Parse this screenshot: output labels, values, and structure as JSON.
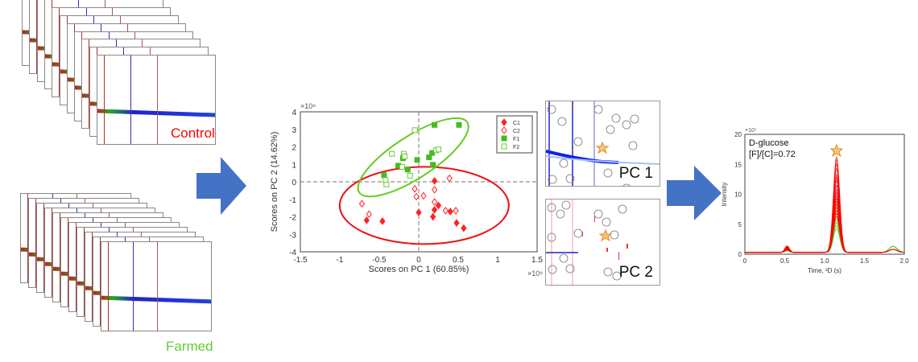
{
  "stacks": {
    "control_label": "Control",
    "farmed_label": "Farmed",
    "control_color": "#ff0000",
    "farmed_color": "#66cc33"
  },
  "arrow_color": "#4472c4",
  "loadings": {
    "pc1_label": "PC 1",
    "pc2_label": "PC 2"
  },
  "chart_data": [
    {
      "type": "scatter",
      "xlabel": "Scores on PC 1 (60.85%)",
      "ylabel": "Scores on PC 2 (14.62%)",
      "x_multiplier": "×10⁹",
      "y_multiplier": "×10⁸",
      "xlim": [
        -1.5,
        1.5
      ],
      "ylim": [
        -4,
        4
      ],
      "xticks": [
        "-1.5",
        "-1",
        "-0.5",
        "0",
        "0.5",
        "1",
        "1.5"
      ],
      "yticks": [
        "4",
        "3",
        "2",
        "1",
        "0",
        "-1",
        "-2",
        "-3",
        "-4"
      ],
      "legend_position": "top-right",
      "series": [
        {
          "name": "C1",
          "color": "#ff2222",
          "marker": "filled-diamond",
          "points": [
            [
              0.2,
              0.05
            ],
            [
              0.2,
              -1.6
            ],
            [
              0.25,
              -1.35
            ],
            [
              0,
              -1.75
            ],
            [
              0.18,
              -2.0
            ],
            [
              0.4,
              -1.7
            ],
            [
              0.48,
              -2.35
            ],
            [
              0.57,
              -2.65
            ],
            [
              -0.66,
              -2.2
            ],
            [
              -0.46,
              -2.25
            ]
          ]
        },
        {
          "name": "C2",
          "color": "#ff2222",
          "marker": "open-diamond",
          "points": [
            [
              0.39,
              0.2
            ],
            [
              -0.05,
              -0.4
            ],
            [
              0.2,
              -0.45
            ],
            [
              -0.03,
              -0.85
            ],
            [
              0.06,
              -0.8
            ],
            [
              0.2,
              -1.15
            ],
            [
              0.34,
              -1.65
            ],
            [
              0.47,
              -1.65
            ],
            [
              -0.72,
              -1.25
            ],
            [
              -0.63,
              -1.85
            ]
          ]
        },
        {
          "name": "F1",
          "color": "#44bb22",
          "marker": "filled-square",
          "points": [
            [
              0.2,
              3.25
            ],
            [
              0.51,
              3.25
            ],
            [
              0.17,
              1.65
            ],
            [
              0.13,
              1.4
            ],
            [
              -0.2,
              1.35
            ],
            [
              -0.02,
              1.25
            ],
            [
              0.18,
              0.97
            ],
            [
              -0.26,
              0.92
            ],
            [
              -0.14,
              0.7
            ],
            [
              -0.44,
              0.38
            ]
          ]
        },
        {
          "name": "F2",
          "color": "#66cc33",
          "marker": "open-square",
          "points": [
            [
              -0.05,
              2.95
            ],
            [
              -0.34,
              1.6
            ],
            [
              -0.19,
              1.6
            ],
            [
              -0.18,
              1.45
            ],
            [
              0.22,
              1.8
            ],
            [
              0.25,
              1.85
            ],
            [
              -0.21,
              0.85
            ],
            [
              -0.11,
              0.35
            ],
            [
              -0.42,
              0.1
            ],
            [
              -0.41,
              -0.15
            ]
          ]
        }
      ]
    },
    {
      "type": "line",
      "annotation_1": "D-glucose",
      "annotation_2": "[F]/[C]=0.72",
      "xlabel": "Time, ²D (s)",
      "ylabel": "Intensity",
      "y_multiplier": "×10⁵",
      "xlim": [
        0,
        2
      ],
      "ylim": [
        0,
        20
      ],
      "xticks": [
        "0",
        "0.5",
        "1.0",
        "1.5",
        "2.0"
      ],
      "yticks": [
        "20",
        "15",
        "10",
        "5",
        "0"
      ],
      "peak_time": 1.15,
      "series": [
        {
          "group": "C",
          "color": "#ff0000",
          "peak_heights": [
            16,
            15.5,
            14.8,
            14,
            13,
            12.5,
            12,
            11.2,
            10.5,
            10,
            9.5,
            9,
            8.5,
            8,
            7.5,
            7,
            6.5,
            6
          ]
        },
        {
          "group": "F",
          "color": "#44cc22",
          "peak_heights": [
            9,
            8.5,
            8,
            7.5,
            7,
            6.5,
            6,
            5.5,
            5,
            4.5,
            4
          ]
        }
      ]
    }
  ]
}
